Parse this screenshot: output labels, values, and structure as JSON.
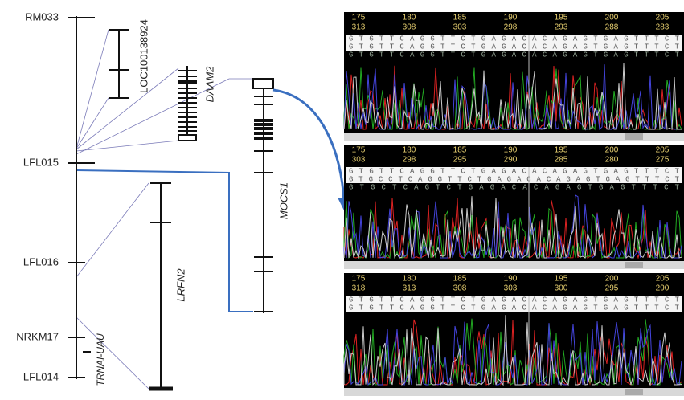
{
  "markers": [
    "RM033",
    "LFL015",
    "LFL016",
    "NRKM17",
    "LFL014"
  ],
  "genes": {
    "loc": "LOC100138924",
    "daam2": "DAAM2",
    "mocs1": "MOCS1",
    "lrfn2": "LRFN2",
    "trnai": "TRNAI-UAU"
  },
  "panels": [
    {
      "top": [
        "175",
        "180",
        "185",
        "190",
        "195",
        "200",
        "205"
      ],
      "bottom": [
        "313",
        "308",
        "303",
        "298",
        "293",
        "288",
        "283"
      ],
      "sequences": [
        "GTGTTCAGGTTCTGAGACACAGAGTGAGTTTCT",
        "GTGTTCAGGTTCTGAGACACAGAGTGAGTTTCT",
        "GTGTTCAGGTTCTGAGACACAGAGTGAGTTTCT"
      ]
    },
    {
      "top": [
        "175",
        "180",
        "185",
        "190",
        "195",
        "200",
        "205"
      ],
      "bottom": [
        "303",
        "298",
        "295",
        "290",
        "285",
        "280",
        "275"
      ],
      "sequences": [
        "GTGTTCAGGTTCTGAGACACAGAGTGAGTTTCT",
        "GTGCCTCAGGTTCTGAGACACAGAGTGAGTTTCT",
        "GTGCTCAGTCTGAGACACAGAGTGAGTTTCT"
      ]
    },
    {
      "top": [
        "175",
        "180",
        "185",
        "190",
        "195",
        "200",
        "205"
      ],
      "bottom": [
        "318",
        "313",
        "308",
        "303",
        "300",
        "295",
        "290"
      ],
      "sequences": [
        "GTGTTCAGGTTCTGAGACACAGAGTGAGTTTCT",
        "GTGTTCAGGTTCTGAGACACAGAGTGAGTTTCT"
      ]
    }
  ]
}
